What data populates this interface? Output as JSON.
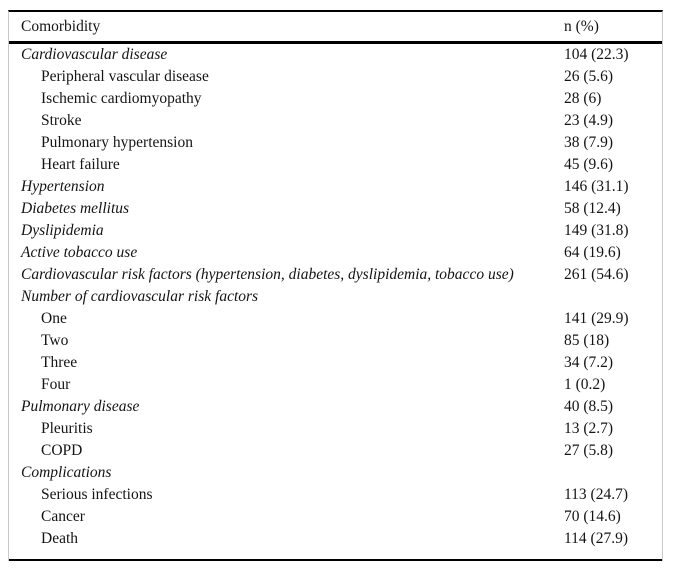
{
  "colors": {
    "background": "#ffffff",
    "text": "#141414",
    "rule": "#000000",
    "frame": "#c9c9c9"
  },
  "table": {
    "columns": [
      {
        "label": "Comorbidity"
      },
      {
        "label": "n (%)"
      }
    ],
    "rows": [
      {
        "label": "Cardiovascular disease",
        "value": "104 (22.3)",
        "style": "section"
      },
      {
        "label": "Peripheral vascular disease",
        "value": "26 (5.6)",
        "style": "sub"
      },
      {
        "label": "Ischemic cardiomyopathy",
        "value": "28 (6)",
        "style": "sub"
      },
      {
        "label": "Stroke",
        "value": "23 (4.9)",
        "style": "sub"
      },
      {
        "label": "Pulmonary hypertension",
        "value": "38 (7.9)",
        "style": "sub"
      },
      {
        "label": "Heart failure",
        "value": "45 (9.6)",
        "style": "sub"
      },
      {
        "label": "Hypertension",
        "value": "146 (31.1)",
        "style": "section"
      },
      {
        "label": "Diabetes mellitus",
        "value": "58 (12.4)",
        "style": "section"
      },
      {
        "label": "Dyslipidemia",
        "value": "149 (31.8)",
        "style": "section"
      },
      {
        "label": "Active tobacco use",
        "value": "64 (19.6)",
        "style": "section"
      },
      {
        "label": "Cardiovascular risk factors (hypertension, diabetes, dyslipidemia, tobacco use)",
        "value": "261 (54.6)",
        "style": "section"
      },
      {
        "label": "Number of cardiovascular risk factors",
        "value": "",
        "style": "section"
      },
      {
        "label": "One",
        "value": "141 (29.9)",
        "style": "sub"
      },
      {
        "label": "Two",
        "value": "85 (18)",
        "style": "sub"
      },
      {
        "label": "Three",
        "value": "34 (7.2)",
        "style": "sub"
      },
      {
        "label": "Four",
        "value": "1 (0.2)",
        "style": "sub"
      },
      {
        "label": "Pulmonary disease",
        "value": "40 (8.5)",
        "style": "section"
      },
      {
        "label": "Pleuritis",
        "value": "13 (2.7)",
        "style": "sub"
      },
      {
        "label": "COPD",
        "value": "27 (5.8)",
        "style": "sub"
      },
      {
        "label": "Complications",
        "value": "",
        "style": "section"
      },
      {
        "label": "Serious infections",
        "value": "113 (24.7)",
        "style": "sub"
      },
      {
        "label": "Cancer",
        "value": "70 (14.6)",
        "style": "sub"
      },
      {
        "label": "Death",
        "value": "114 (27.9)",
        "style": "sub"
      }
    ]
  }
}
